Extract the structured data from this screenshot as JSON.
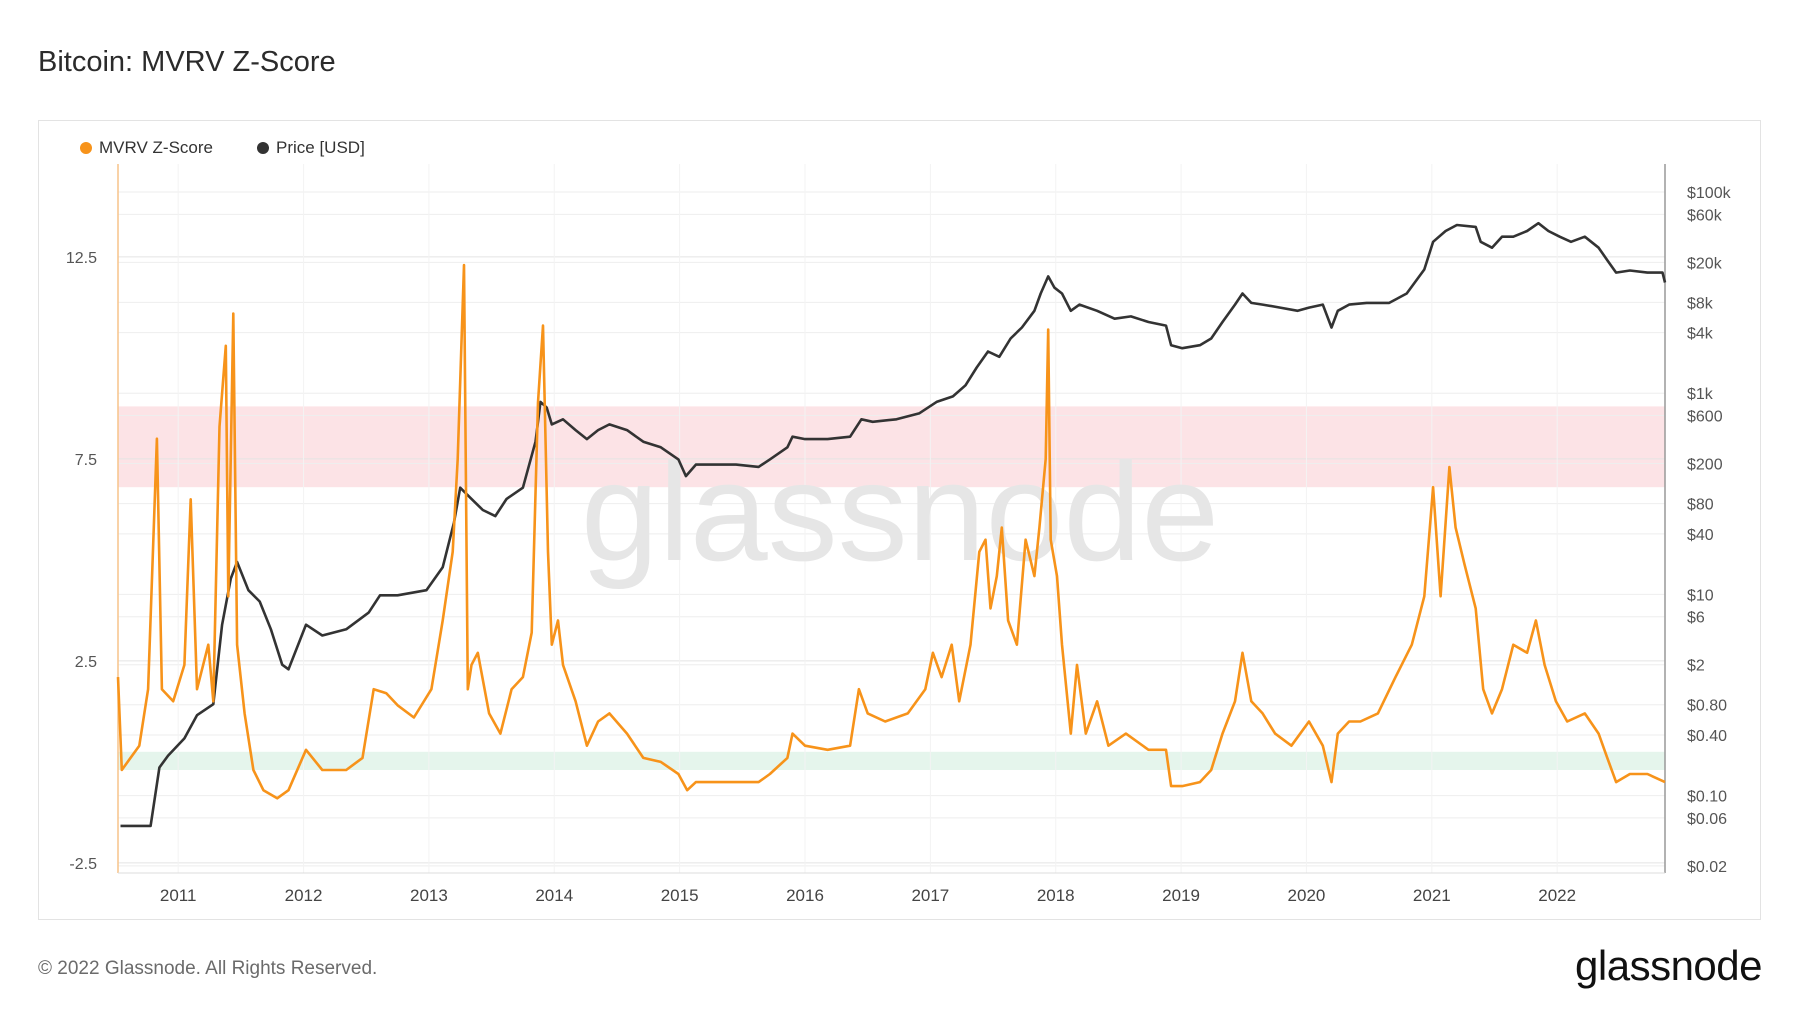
{
  "title": "Bitcoin: MVRV Z-Score",
  "footer": "© 2022 Glassnode. All Rights Reserved.",
  "logo_text": "glassnode",
  "watermark": "glassnode",
  "legend": [
    {
      "label": "MVRV Z-Score",
      "color": "#f7931a"
    },
    {
      "label": "Price [USD]",
      "color": "#333333"
    }
  ],
  "chart_data": {
    "type": "line",
    "title": "Bitcoin: MVRV Z-Score",
    "grid": true,
    "legend_position": "top-left",
    "x_ticks": [
      "2011",
      "2012",
      "2013",
      "2014",
      "2015",
      "2016",
      "2017",
      "2018",
      "2019",
      "2020",
      "2021",
      "2022"
    ],
    "xlim": [
      2010.52,
      2022.86
    ],
    "left_axis": {
      "ticks": [
        "12.5",
        "7.5",
        "2.5",
        "-2.5"
      ],
      "tick_values": [
        12.5,
        7.5,
        2.5,
        -2.5
      ],
      "ylim": [
        -2.75,
        14.8
      ]
    },
    "right_axis": {
      "scale": "log",
      "ticks": [
        "$100k",
        "$60k",
        "$20k",
        "$8k",
        "$4k",
        "$1k",
        "$600",
        "$200",
        "$80",
        "$40",
        "$10",
        "$6",
        "$2",
        "$0.80",
        "$0.40",
        "$0.10",
        "$0.06",
        "$0.02"
      ],
      "tick_values": [
        100000,
        60000,
        20000,
        8000,
        4000,
        1000,
        600,
        200,
        80,
        40,
        10,
        6,
        2,
        0.8,
        0.4,
        0.1,
        0.06,
        0.02
      ],
      "ylim": [
        0.017,
        190000
      ]
    },
    "bands": [
      {
        "zone": "red",
        "from": 6.8,
        "to": 8.8,
        "color": "#fbd9dd"
      },
      {
        "zone": "green",
        "from": -0.2,
        "to": 0.25,
        "color": "#dcf2e6"
      }
    ],
    "series": [
      {
        "name": "MVRV Z-Score",
        "axis": "left",
        "color": "#f7931a",
        "points": [
          [
            2010.52,
            2.1
          ],
          [
            2010.55,
            -0.2
          ],
          [
            2010.69,
            0.4
          ],
          [
            2010.76,
            1.8
          ],
          [
            2010.83,
            8.0
          ],
          [
            2010.87,
            1.8
          ],
          [
            2010.96,
            1.5
          ],
          [
            2011.05,
            2.4
          ],
          [
            2011.1,
            6.5
          ],
          [
            2011.15,
            1.8
          ],
          [
            2011.24,
            2.9
          ],
          [
            2011.28,
            1.5
          ],
          [
            2011.33,
            8.3
          ],
          [
            2011.38,
            10.3
          ],
          [
            2011.4,
            4.1
          ],
          [
            2011.44,
            11.1
          ],
          [
            2011.47,
            2.9
          ],
          [
            2011.53,
            1.2
          ],
          [
            2011.6,
            -0.2
          ],
          [
            2011.68,
            -0.7
          ],
          [
            2011.79,
            -0.9
          ],
          [
            2011.88,
            -0.7
          ],
          [
            2012.02,
            0.3
          ],
          [
            2012.15,
            -0.2
          ],
          [
            2012.34,
            -0.2
          ],
          [
            2012.47,
            0.1
          ],
          [
            2012.56,
            1.8
          ],
          [
            2012.66,
            1.7
          ],
          [
            2012.75,
            1.4
          ],
          [
            2012.88,
            1.1
          ],
          [
            2013.02,
            1.8
          ],
          [
            2013.11,
            3.5
          ],
          [
            2013.19,
            5.2
          ],
          [
            2013.23,
            7.5
          ],
          [
            2013.28,
            12.3
          ],
          [
            2013.31,
            1.8
          ],
          [
            2013.34,
            2.4
          ],
          [
            2013.39,
            2.7
          ],
          [
            2013.48,
            1.2
          ],
          [
            2013.57,
            0.7
          ],
          [
            2013.66,
            1.8
          ],
          [
            2013.75,
            2.1
          ],
          [
            2013.82,
            3.2
          ],
          [
            2013.87,
            8.9
          ],
          [
            2013.91,
            10.8
          ],
          [
            2013.95,
            5.2
          ],
          [
            2013.98,
            2.9
          ],
          [
            2014.03,
            3.5
          ],
          [
            2014.07,
            2.4
          ],
          [
            2014.17,
            1.5
          ],
          [
            2014.26,
            0.4
          ],
          [
            2014.35,
            1.0
          ],
          [
            2014.44,
            1.2
          ],
          [
            2014.58,
            0.7
          ],
          [
            2014.71,
            0.1
          ],
          [
            2014.85,
            0.0
          ],
          [
            2014.99,
            -0.3
          ],
          [
            2015.06,
            -0.7
          ],
          [
            2015.13,
            -0.5
          ],
          [
            2015.26,
            -0.5
          ],
          [
            2015.45,
            -0.5
          ],
          [
            2015.63,
            -0.5
          ],
          [
            2015.72,
            -0.3
          ],
          [
            2015.86,
            0.1
          ],
          [
            2015.9,
            0.7
          ],
          [
            2016.0,
            0.4
          ],
          [
            2016.18,
            0.3
          ],
          [
            2016.36,
            0.4
          ],
          [
            2016.43,
            1.8
          ],
          [
            2016.5,
            1.2
          ],
          [
            2016.64,
            1.0
          ],
          [
            2016.82,
            1.2
          ],
          [
            2016.96,
            1.8
          ],
          [
            2017.02,
            2.7
          ],
          [
            2017.09,
            2.1
          ],
          [
            2017.17,
            2.9
          ],
          [
            2017.23,
            1.5
          ],
          [
            2017.32,
            2.9
          ],
          [
            2017.39,
            5.2
          ],
          [
            2017.44,
            5.5
          ],
          [
            2017.48,
            3.8
          ],
          [
            2017.53,
            4.6
          ],
          [
            2017.57,
            5.8
          ],
          [
            2017.62,
            3.5
          ],
          [
            2017.69,
            2.9
          ],
          [
            2017.76,
            5.5
          ],
          [
            2017.83,
            4.6
          ],
          [
            2017.87,
            5.8
          ],
          [
            2017.92,
            7.5
          ],
          [
            2017.94,
            10.7
          ],
          [
            2017.96,
            5.5
          ],
          [
            2018.01,
            4.6
          ],
          [
            2018.05,
            2.9
          ],
          [
            2018.12,
            0.7
          ],
          [
            2018.17,
            2.4
          ],
          [
            2018.24,
            0.7
          ],
          [
            2018.33,
            1.5
          ],
          [
            2018.42,
            0.4
          ],
          [
            2018.56,
            0.7
          ],
          [
            2018.74,
            0.3
          ],
          [
            2018.88,
            0.3
          ],
          [
            2018.92,
            -0.6
          ],
          [
            2019.01,
            -0.6
          ],
          [
            2019.15,
            -0.5
          ],
          [
            2019.24,
            -0.2
          ],
          [
            2019.33,
            0.7
          ],
          [
            2019.43,
            1.5
          ],
          [
            2019.49,
            2.7
          ],
          [
            2019.56,
            1.5
          ],
          [
            2019.65,
            1.2
          ],
          [
            2019.75,
            0.7
          ],
          [
            2019.88,
            0.4
          ],
          [
            2020.02,
            1.0
          ],
          [
            2020.13,
            0.4
          ],
          [
            2020.2,
            -0.5
          ],
          [
            2020.25,
            0.7
          ],
          [
            2020.34,
            1.0
          ],
          [
            2020.43,
            1.0
          ],
          [
            2020.57,
            1.2
          ],
          [
            2020.71,
            2.1
          ],
          [
            2020.84,
            2.9
          ],
          [
            2020.94,
            4.1
          ],
          [
            2021.01,
            6.8
          ],
          [
            2021.07,
            4.1
          ],
          [
            2021.14,
            7.3
          ],
          [
            2021.19,
            5.8
          ],
          [
            2021.26,
            4.9
          ],
          [
            2021.35,
            3.8
          ],
          [
            2021.41,
            1.8
          ],
          [
            2021.48,
            1.2
          ],
          [
            2021.56,
            1.8
          ],
          [
            2021.65,
            2.9
          ],
          [
            2021.76,
            2.7
          ],
          [
            2021.83,
            3.5
          ],
          [
            2021.9,
            2.4
          ],
          [
            2021.99,
            1.5
          ],
          [
            2022.08,
            1.0
          ],
          [
            2022.22,
            1.2
          ],
          [
            2022.33,
            0.7
          ],
          [
            2022.4,
            0.1
          ],
          [
            2022.47,
            -0.5
          ],
          [
            2022.58,
            -0.3
          ],
          [
            2022.72,
            -0.3
          ],
          [
            2022.86,
            -0.5
          ]
        ]
      },
      {
        "name": "Price [USD]",
        "axis": "right",
        "color": "#333333",
        "points": [
          [
            2010.54,
            0.05
          ],
          [
            2010.6,
            0.05
          ],
          [
            2010.78,
            0.05
          ],
          [
            2010.85,
            0.19
          ],
          [
            2010.92,
            0.25
          ],
          [
            2011.05,
            0.37
          ],
          [
            2011.15,
            0.63
          ],
          [
            2011.28,
            0.81
          ],
          [
            2011.35,
            5.0
          ],
          [
            2011.42,
            14.4
          ],
          [
            2011.47,
            21
          ],
          [
            2011.56,
            11
          ],
          [
            2011.65,
            8.5
          ],
          [
            2011.74,
            4.5
          ],
          [
            2011.83,
            2.0
          ],
          [
            2011.88,
            1.8
          ],
          [
            2012.02,
            5.0
          ],
          [
            2012.15,
            3.9
          ],
          [
            2012.34,
            4.5
          ],
          [
            2012.52,
            6.6
          ],
          [
            2012.61,
            9.8
          ],
          [
            2012.75,
            9.8
          ],
          [
            2012.98,
            11
          ],
          [
            2013.11,
            18.6
          ],
          [
            2013.2,
            52
          ],
          [
            2013.25,
            115
          ],
          [
            2013.34,
            89
          ],
          [
            2013.43,
            69
          ],
          [
            2013.53,
            60
          ],
          [
            2013.62,
            89
          ],
          [
            2013.75,
            115
          ],
          [
            2013.85,
            330
          ],
          [
            2013.89,
            820
          ],
          [
            2013.94,
            720
          ],
          [
            2013.98,
            490
          ],
          [
            2014.07,
            550
          ],
          [
            2014.17,
            430
          ],
          [
            2014.26,
            350
          ],
          [
            2014.35,
            430
          ],
          [
            2014.44,
            490
          ],
          [
            2014.58,
            430
          ],
          [
            2014.71,
            330
          ],
          [
            2014.85,
            290
          ],
          [
            2014.99,
            220
          ],
          [
            2015.05,
            150
          ],
          [
            2015.13,
            195
          ],
          [
            2015.26,
            195
          ],
          [
            2015.45,
            195
          ],
          [
            2015.63,
            185
          ],
          [
            2015.72,
            220
          ],
          [
            2015.86,
            290
          ],
          [
            2015.9,
            370
          ],
          [
            2016.0,
            350
          ],
          [
            2016.18,
            350
          ],
          [
            2016.36,
            370
          ],
          [
            2016.45,
            550
          ],
          [
            2016.54,
            520
          ],
          [
            2016.73,
            550
          ],
          [
            2016.91,
            630
          ],
          [
            2017.05,
            820
          ],
          [
            2017.18,
            930
          ],
          [
            2017.28,
            1200
          ],
          [
            2017.37,
            1800
          ],
          [
            2017.46,
            2600
          ],
          [
            2017.55,
            2300
          ],
          [
            2017.64,
            3500
          ],
          [
            2017.73,
            4500
          ],
          [
            2017.83,
            6600
          ],
          [
            2017.88,
            9800
          ],
          [
            2017.94,
            14500
          ],
          [
            2017.99,
            11200
          ],
          [
            2018.05,
            9800
          ],
          [
            2018.12,
            6600
          ],
          [
            2018.19,
            7600
          ],
          [
            2018.33,
            6600
          ],
          [
            2018.47,
            5500
          ],
          [
            2018.6,
            5800
          ],
          [
            2018.74,
            5100
          ],
          [
            2018.88,
            4700
          ],
          [
            2018.92,
            3000
          ],
          [
            2019.01,
            2800
          ],
          [
            2019.15,
            3000
          ],
          [
            2019.24,
            3500
          ],
          [
            2019.33,
            5100
          ],
          [
            2019.43,
            7600
          ],
          [
            2019.49,
            9800
          ],
          [
            2019.56,
            7900
          ],
          [
            2019.65,
            7600
          ],
          [
            2019.79,
            7100
          ],
          [
            2019.93,
            6600
          ],
          [
            2020.02,
            7100
          ],
          [
            2020.13,
            7600
          ],
          [
            2020.2,
            4500
          ],
          [
            2020.25,
            6600
          ],
          [
            2020.34,
            7600
          ],
          [
            2020.48,
            7900
          ],
          [
            2020.66,
            7900
          ],
          [
            2020.8,
            9800
          ],
          [
            2020.94,
            17000
          ],
          [
            2021.01,
            32000
          ],
          [
            2021.11,
            41000
          ],
          [
            2021.2,
            47000
          ],
          [
            2021.35,
            45000
          ],
          [
            2021.39,
            32000
          ],
          [
            2021.48,
            28000
          ],
          [
            2021.56,
            36000
          ],
          [
            2021.65,
            36000
          ],
          [
            2021.76,
            41000
          ],
          [
            2021.85,
            49000
          ],
          [
            2021.93,
            41000
          ],
          [
            2022.02,
            36000
          ],
          [
            2022.11,
            32000
          ],
          [
            2022.22,
            36000
          ],
          [
            2022.33,
            28000
          ],
          [
            2022.4,
            21000
          ],
          [
            2022.47,
            15800
          ],
          [
            2022.58,
            16600
          ],
          [
            2022.72,
            15800
          ],
          [
            2022.84,
            15800
          ],
          [
            2022.86,
            12600
          ]
        ]
      }
    ]
  }
}
